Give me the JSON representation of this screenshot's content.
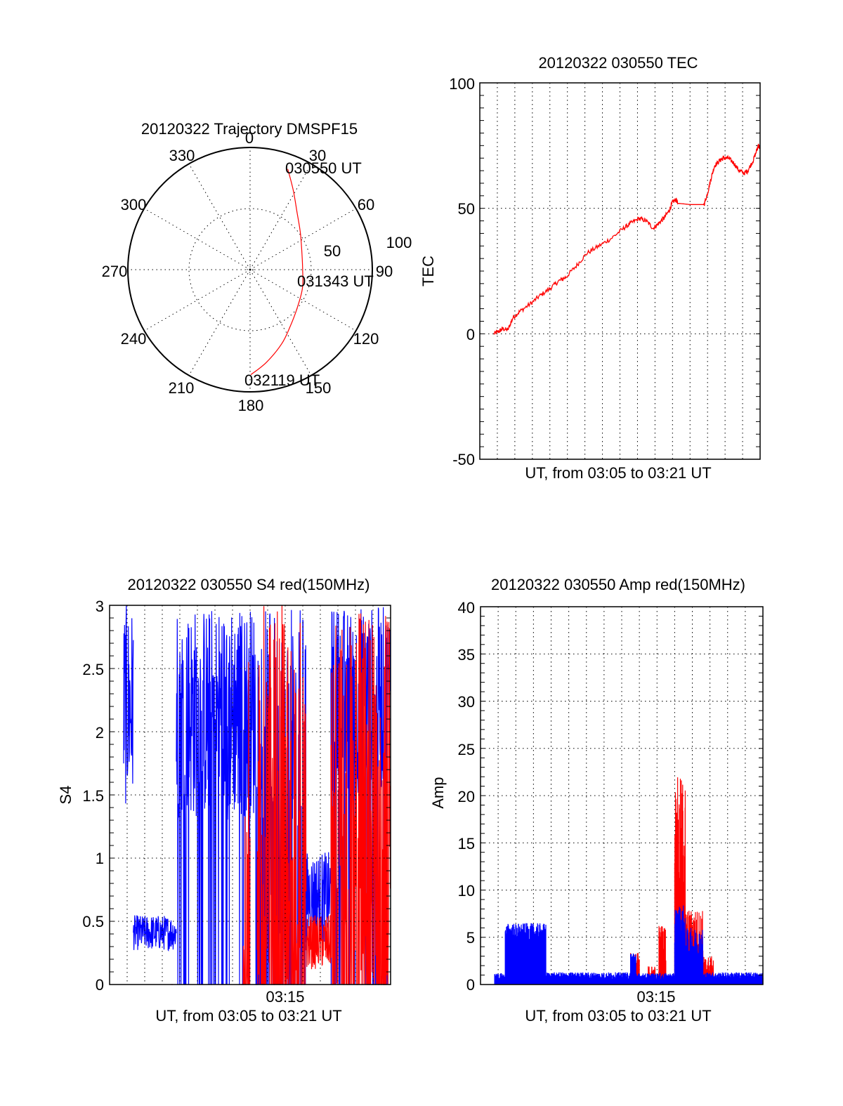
{
  "colors": {
    "red": "#ff0000",
    "blue": "#0000ff",
    "axis": "#000000",
    "background": "#ffffff"
  },
  "chart_data": [
    {
      "id": "trajectory",
      "type": "polar",
      "title": "20120322 Trajectory DMSPF15",
      "angle_labels": [
        "0",
        "30",
        "60",
        "90",
        "120",
        "150",
        "180",
        "210",
        "240",
        "270",
        "300",
        "330"
      ],
      "angles_deg": [
        0,
        30,
        60,
        90,
        120,
        150,
        180,
        210,
        240,
        270,
        300,
        330
      ],
      "radial_labels": [
        "50",
        "100"
      ],
      "radial_values": [
        50,
        100
      ],
      "rlim": [
        0,
        100
      ],
      "grid": true,
      "series": [
        {
          "name": "trajectory",
          "color": "red",
          "points": [
            {
              "az": 20.5,
              "r": 88
            },
            {
              "az": 28.5,
              "r": 74
            },
            {
              "az": 40,
              "r": 60
            },
            {
              "az": 53,
              "r": 51.4
            },
            {
              "az": 70,
              "r": 45
            },
            {
              "az": 90,
              "r": 43
            },
            {
              "az": 110,
              "r": 45.5
            },
            {
              "az": 130,
              "r": 50
            },
            {
              "az": 145,
              "r": 57
            },
            {
              "az": 157,
              "r": 66
            },
            {
              "az": 170,
              "r": 77
            },
            {
              "az": 179.6,
              "r": 86
            }
          ]
        }
      ],
      "annotations": [
        "030550 UT",
        "031343 UT",
        "032119 UT"
      ]
    },
    {
      "id": "tec",
      "type": "line",
      "title": "20120322 030550 TEC",
      "xlabel": "UT, from 03:05 to 03:21 UT",
      "ylabel": "TEC",
      "xlim_minutes_from_0305": [
        0,
        16
      ],
      "ylim": [
        -50,
        100
      ],
      "yticks": [
        -50,
        0,
        50,
        100
      ],
      "ytick_labels": [
        "-50",
        "0",
        "50",
        "100"
      ],
      "grid": true,
      "series": [
        {
          "name": "TEC",
          "color": "red",
          "x": [
            0.8,
            1.1,
            1.3,
            1.6,
            1.9,
            2.3,
            2.9,
            3.4,
            4.0,
            4.5,
            4.9,
            5.5,
            6.1,
            6.8,
            7.5,
            8.2,
            8.6,
            9.1,
            9.5,
            9.9,
            10.2,
            10.5,
            10.8,
            11.0,
            11.2,
            11.3,
            11.6,
            12.0,
            12.4,
            12.8,
            13.0,
            13.2,
            13.4,
            13.7,
            13.9,
            14.2,
            14.5,
            14.8,
            15.1,
            15.3,
            15.6,
            15.8,
            15.9,
            16.0
          ],
          "y": [
            0,
            1,
            2,
            1.5,
            6.5,
            9,
            12,
            15,
            18,
            21,
            22.5,
            27,
            32,
            35,
            38,
            42,
            44,
            46,
            45,
            42,
            44,
            46,
            49,
            52.5,
            53.5,
            52,
            51.8,
            51.5,
            51.5,
            51.5,
            56,
            62,
            67,
            69,
            70,
            70,
            68,
            65,
            64,
            65,
            69,
            73,
            75,
            74
          ]
        }
      ]
    },
    {
      "id": "s4",
      "type": "line",
      "title": "20120322 030550 S4 red(150MHz)",
      "xlabel": "UT, from 03:05 to 03:21 UT",
      "ylabel": "S4",
      "xlim_minutes_from_0305": [
        0,
        16
      ],
      "xticks_minutes": [
        10
      ],
      "xtick_labels": [
        "03:15"
      ],
      "ylim": [
        0,
        3
      ],
      "yticks": [
        0,
        0.5,
        1,
        1.5,
        2,
        2.5,
        3
      ],
      "ytick_labels": [
        "0",
        "0.5",
        "1",
        "1.5",
        "2",
        "2.5",
        "3"
      ],
      "grid": true,
      "series": [
        {
          "name": "blue",
          "color": "blue",
          "segments": [
            {
              "t": [
                0.8,
                1.35
              ],
              "lo": 1.4,
              "hi": 3.0,
              "drop": 0.0
            },
            {
              "t": [
                1.35,
                3.8
              ],
              "lo": 0.27,
              "hi": 0.55,
              "drop": 0.0
            },
            {
              "t": [
                3.8,
                8.4
              ],
              "lo": 1.3,
              "hi": 3.0,
              "drop": 0.12
            },
            {
              "t": [
                8.4,
                11.2
              ],
              "lo": 0.4,
              "hi": 3.0,
              "drop": 0.3
            },
            {
              "t": [
                11.2,
                12.6
              ],
              "lo": 0.33,
              "hi": 1.05,
              "drop": 0.0
            },
            {
              "t": [
                12.6,
                16.0
              ],
              "lo": 1.5,
              "hi": 3.0,
              "drop": 0.15
            }
          ]
        },
        {
          "name": "red",
          "color": "red",
          "segments": [
            {
              "t": [
                3.5,
                3.6
              ],
              "lo": 0.0,
              "hi": 3.0,
              "drop": 1.0
            },
            {
              "t": [
                6.1,
                6.15
              ],
              "lo": 0.0,
              "hi": 3.0,
              "drop": 1.0
            },
            {
              "t": [
                7.5,
                8.0
              ],
              "lo": 0.0,
              "hi": 2.6,
              "drop": 0.6
            },
            {
              "t": [
                8.4,
                11.2
              ],
              "lo": 0.0,
              "hi": 3.0,
              "drop": 0.45
            },
            {
              "t": [
                11.2,
                12.6
              ],
              "lo": 0.12,
              "hi": 0.55,
              "drop": 0.0
            },
            {
              "t": [
                12.6,
                16.0
              ],
              "lo": 0.0,
              "hi": 3.0,
              "drop": 0.4
            }
          ]
        }
      ]
    },
    {
      "id": "amp",
      "type": "line",
      "title": "20120322 030550 Amp red(150MHz)",
      "xlabel": "UT, from 03:05 to 03:21 UT",
      "ylabel": "Amp",
      "xlim_minutes_from_0305": [
        0,
        16
      ],
      "xticks_minutes": [
        10
      ],
      "xtick_labels": [
        "03:15"
      ],
      "ylim": [
        0,
        40
      ],
      "yticks": [
        0,
        5,
        10,
        15,
        20,
        25,
        30,
        35,
        40
      ],
      "ytick_labels": [
        "0",
        "5",
        "10",
        "15",
        "20",
        "25",
        "30",
        "35",
        "40"
      ],
      "grid": true,
      "series": [
        {
          "name": "red",
          "color": "red",
          "segments": [
            {
              "t": [
                1.4,
                3.7
              ],
              "lo": 0.05,
              "hi": 0.3
            },
            {
              "t": [
                8.5,
                9.0
              ],
              "lo": 0.3,
              "hi": 3.4
            },
            {
              "t": [
                9.5,
                9.9
              ],
              "lo": 0.5,
              "hi": 2.0
            },
            {
              "t": [
                10.1,
                10.5
              ],
              "lo": 0.6,
              "hi": 6.5
            },
            {
              "t": [
                11.0,
                11.6
              ],
              "lo": 5.0,
              "hi": 22.0
            },
            {
              "t": [
                11.6,
                12.6
              ],
              "lo": 2.0,
              "hi": 8.0
            },
            {
              "t": [
                12.6,
                13.2
              ],
              "lo": 0.5,
              "hi": 3.0
            }
          ]
        },
        {
          "name": "blue",
          "color": "blue",
          "segments": [
            {
              "t": [
                0.8,
                1.4
              ],
              "lo": 0.3,
              "hi": 1.2
            },
            {
              "t": [
                1.4,
                3.7
              ],
              "lo": 4.2,
              "hi": 6.5
            },
            {
              "t": [
                3.7,
                8.5
              ],
              "lo": 0.4,
              "hi": 1.3
            },
            {
              "t": [
                8.5,
                8.8
              ],
              "lo": 1.5,
              "hi": 3.7
            },
            {
              "t": [
                8.8,
                11.0
              ],
              "lo": 0.4,
              "hi": 1.2
            },
            {
              "t": [
                11.0,
                11.6
              ],
              "lo": 3.0,
              "hi": 8.5
            },
            {
              "t": [
                11.6,
                12.6
              ],
              "lo": 2.0,
              "hi": 6.0
            },
            {
              "t": [
                12.6,
                16.0
              ],
              "lo": 0.4,
              "hi": 1.3
            }
          ]
        }
      ]
    }
  ]
}
